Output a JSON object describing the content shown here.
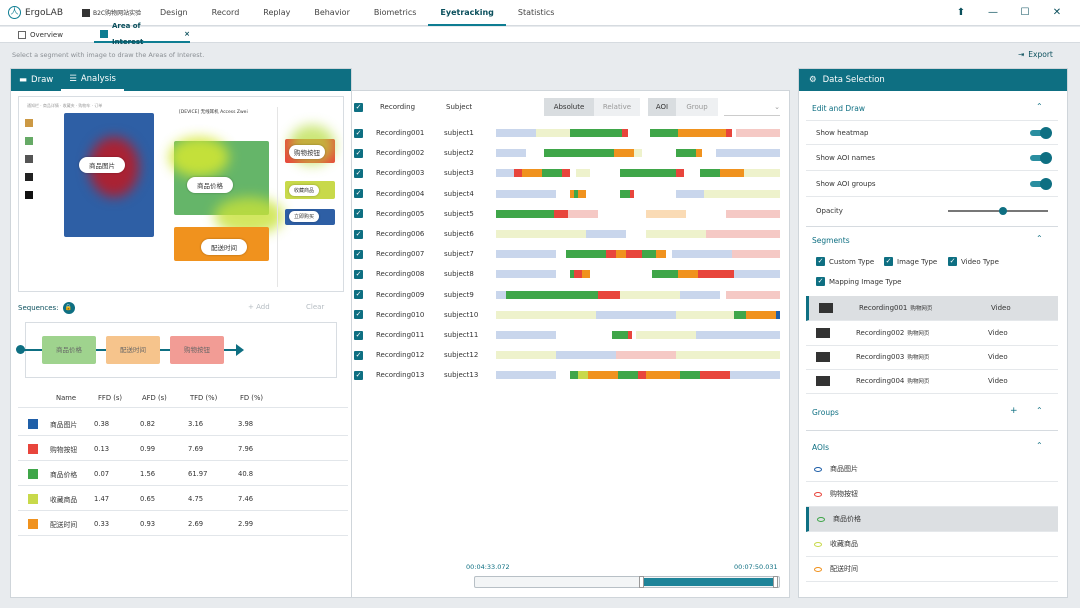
{
  "app": {
    "name": "ErgoLAB",
    "project": "B2C购物网站实验"
  },
  "menu": [
    "Design",
    "Record",
    "Replay",
    "Behavior",
    "Biometrics",
    "Eyetracking",
    "Statistics"
  ],
  "active_menu": "Eyetracking",
  "tabs": [
    {
      "label": "Overview"
    },
    {
      "label": "Area of Interest",
      "close": "×"
    }
  ],
  "hint": "Select a segment with image to draw the Areas of Interest.",
  "export_label": "Export",
  "left_panel": {
    "tabs": [
      "Draw",
      "Analysis"
    ]
  },
  "stimulus": {
    "header_text": "通知栏 · 商品详情 · 收藏夹 · 购物车 · 订单",
    "product_title": "[DEVICE] 无线耳机 Access Zwei",
    "aoi_labels": {
      "image": "商品图片",
      "price": "商品价格",
      "cart": "购物按钮",
      "delivery": "配送时间",
      "fav": "收藏商品",
      "buy": "立即购买"
    }
  },
  "sequences": {
    "label": "Sequences:",
    "add": "+ Add",
    "clear": "Clear",
    "nodes": [
      "商品价格",
      "配送时间",
      "购物按钮"
    ]
  },
  "metrics": {
    "headers": [
      "Name",
      "FFD (s)",
      "AFD (s)",
      "TFD (%)",
      "FD (%)"
    ],
    "rows": [
      {
        "color": "#1f5fa8",
        "name": "商品图片",
        "ffd": "0.38",
        "afd": "0.82",
        "tfd": "3.16",
        "fd": "3.98"
      },
      {
        "color": "#e8453c",
        "name": "购物按钮",
        "ffd": "0.13",
        "afd": "0.99",
        "tfd": "7.69",
        "fd": "7.96"
      },
      {
        "color": "#3fa649",
        "name": "商品价格",
        "ffd": "0.07",
        "afd": "1.56",
        "tfd": "61.97",
        "fd": "40.8"
      },
      {
        "color": "#c8d94a",
        "name": "收藏商品",
        "ffd": "1.47",
        "afd": "0.65",
        "tfd": "4.75",
        "fd": "7.46"
      },
      {
        "color": "#f0921e",
        "name": "配送时间",
        "ffd": "0.33",
        "afd": "0.93",
        "tfd": "2.69",
        "fd": "2.99"
      }
    ]
  },
  "recordings": {
    "col_recording": "Recording",
    "col_subject": "Subject",
    "mode": {
      "absolute": "Absolute",
      "relative": "Relative",
      "aoi": "AOI",
      "group": "Group"
    },
    "rows": [
      {
        "rec": "Recording001",
        "sub": "subject1"
      },
      {
        "rec": "Recording002",
        "sub": "subject2"
      },
      {
        "rec": "Recording003",
        "sub": "subject3"
      },
      {
        "rec": "Recording004",
        "sub": "subject4"
      },
      {
        "rec": "Recording005",
        "sub": "subject5"
      },
      {
        "rec": "Recording006",
        "sub": "subject6"
      },
      {
        "rec": "Recording007",
        "sub": "subject7"
      },
      {
        "rec": "Recording008",
        "sub": "subject8"
      },
      {
        "rec": "Recording009",
        "sub": "subject9"
      },
      {
        "rec": "Recording010",
        "sub": "subject10"
      },
      {
        "rec": "Recording011",
        "sub": "subject11"
      },
      {
        "rec": "Recording012",
        "sub": "subject12"
      },
      {
        "rec": "Recording013",
        "sub": "subject13"
      }
    ],
    "time_start": "00:04:33.072",
    "time_end": "00:07:50.031"
  },
  "data_selection": {
    "title": "Data Selection",
    "edit_draw": "Edit and Draw",
    "toggles": [
      "Show heatmap",
      "Show AOI names",
      "Show AOI groups"
    ],
    "opacity": "Opacity",
    "opacity_value": 0.55,
    "segments": "Segments",
    "seg_types": [
      "Custom Type",
      "Image Type",
      "Video Type",
      "Mapping Image Type"
    ],
    "segment_rows": [
      {
        "name": "Recording001",
        "sub": "购物网页",
        "type": "Video"
      },
      {
        "name": "Recording002",
        "sub": "购物网页",
        "type": "Video"
      },
      {
        "name": "Recording003",
        "sub": "购物网页",
        "type": "Video"
      },
      {
        "name": "Recording004",
        "sub": "购物网页",
        "type": "Video"
      }
    ],
    "groups": "Groups",
    "aois": "AOIs",
    "aoi_rows": [
      {
        "name": "商品图片",
        "color": "#1f5fa8"
      },
      {
        "name": "购物按钮",
        "color": "#e8453c"
      },
      {
        "name": "商品价格",
        "color": "#3fa649"
      },
      {
        "name": "收藏商品",
        "color": "#c8d94a"
      },
      {
        "name": "配送时间",
        "color": "#f0921e"
      }
    ]
  }
}
